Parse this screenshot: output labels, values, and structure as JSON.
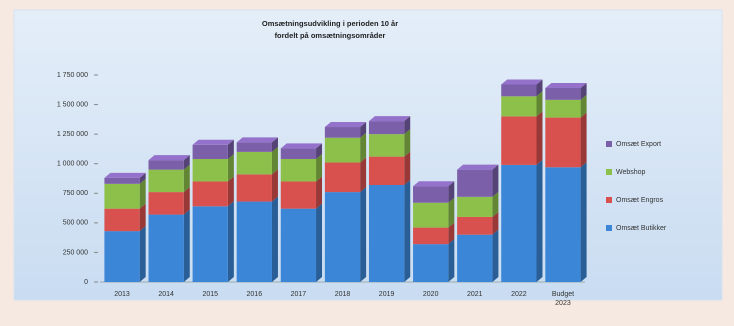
{
  "chart_data": {
    "type": "stacked-bar-3d",
    "title": "Omsætningsudvikling i perioden 10 år",
    "subtitle": "fordelt på omsætningsområder",
    "categories": [
      "2013",
      "2014",
      "2015",
      "2016",
      "2017",
      "2018",
      "2019",
      "2020",
      "2021",
      "2022",
      "Budget 2023"
    ],
    "series": [
      {
        "name": "Omsæt Butikker",
        "color": "#3b86d6",
        "values": [
          430000,
          570000,
          640000,
          680000,
          620000,
          760000,
          820000,
          320000,
          400000,
          990000,
          970000
        ]
      },
      {
        "name": "Omsæt Engros",
        "color": "#d9514e",
        "values": [
          190000,
          190000,
          210000,
          230000,
          230000,
          250000,
          240000,
          140000,
          150000,
          410000,
          420000
        ]
      },
      {
        "name": "Webshop",
        "color": "#8cc04a",
        "values": [
          210000,
          190000,
          190000,
          190000,
          190000,
          210000,
          190000,
          210000,
          170000,
          170000,
          150000
        ]
      },
      {
        "name": "Omsæt Export",
        "color": "#7b5fa9",
        "values": [
          50000,
          80000,
          120000,
          80000,
          90000,
          90000,
          110000,
          140000,
          230000,
          100000,
          100000
        ]
      }
    ],
    "ylim": [
      0,
      1750000
    ],
    "yticks": [
      0,
      {
        "value": 250000,
        "label": "250 000"
      },
      {
        "value": 500000,
        "label": "500 000"
      },
      {
        "value": 750000,
        "label": "750 000"
      },
      {
        "value": 1000000,
        "label": "1 000 000"
      },
      {
        "value": 1250000,
        "label": "1 250 000"
      },
      {
        "value": 1500000,
        "label": "1 500 000"
      },
      {
        "value": 1750000,
        "label": "1 750 000"
      }
    ],
    "legend": "right"
  }
}
